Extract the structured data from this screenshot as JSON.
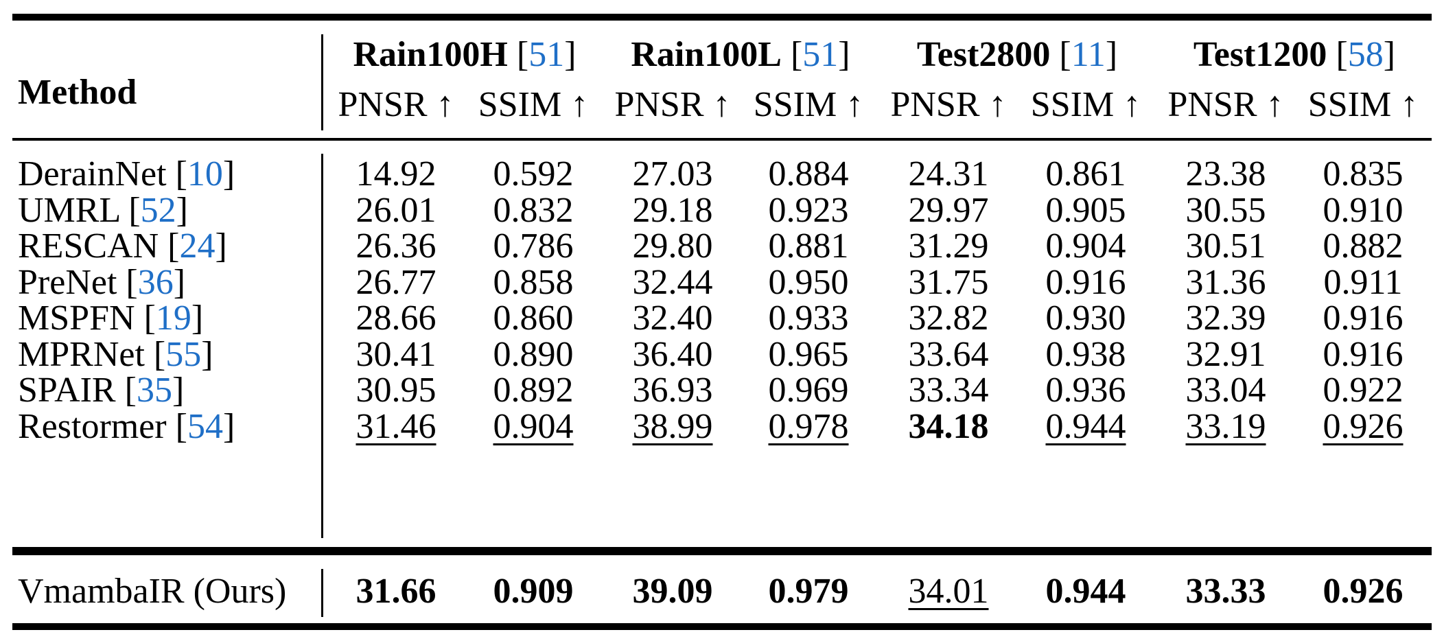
{
  "table": {
    "method_header": "Method",
    "datasets": [
      {
        "name": "Rain100H",
        "ref": "51"
      },
      {
        "name": "Rain100L",
        "ref": "51"
      },
      {
        "name": "Test2800",
        "ref": "11"
      },
      {
        "name": "Test1200",
        "ref": "58"
      }
    ],
    "metrics": [
      "PNSR ↑",
      "SSIM ↑",
      "PNSR ↑",
      "SSIM ↑",
      "PNSR ↑",
      "SSIM ↑",
      "PNSR ↑",
      "SSIM ↑"
    ],
    "rows": [
      {
        "method": "DerainNet",
        "ref": "10",
        "values": [
          "14.92",
          "0.592",
          "27.03",
          "0.884",
          "24.31",
          "0.861",
          "23.38",
          "0.835"
        ],
        "bold": [],
        "underline": []
      },
      {
        "method": "UMRL",
        "ref": "52",
        "values": [
          "26.01",
          "0.832",
          "29.18",
          "0.923",
          "29.97",
          "0.905",
          "30.55",
          "0.910"
        ],
        "bold": [],
        "underline": []
      },
      {
        "method": "RESCAN",
        "ref": "24",
        "values": [
          "26.36",
          "0.786",
          "29.80",
          "0.881",
          "31.29",
          "0.904",
          "30.51",
          "0.882"
        ],
        "bold": [],
        "underline": []
      },
      {
        "method": "PreNet",
        "ref": "36",
        "values": [
          "26.77",
          "0.858",
          "32.44",
          "0.950",
          "31.75",
          "0.916",
          "31.36",
          "0.911"
        ],
        "bold": [],
        "underline": []
      },
      {
        "method": "MSPFN",
        "ref": "19",
        "values": [
          "28.66",
          "0.860",
          "32.40",
          "0.933",
          "32.82",
          "0.930",
          "32.39",
          "0.916"
        ],
        "bold": [],
        "underline": []
      },
      {
        "method": "MPRNet",
        "ref": "55",
        "values": [
          "30.41",
          "0.890",
          "36.40",
          "0.965",
          "33.64",
          "0.938",
          "32.91",
          "0.916"
        ],
        "bold": [],
        "underline": []
      },
      {
        "method": "SPAIR",
        "ref": "35",
        "values": [
          "30.95",
          "0.892",
          "36.93",
          "0.969",
          "33.34",
          "0.936",
          "33.04",
          "0.922"
        ],
        "bold": [],
        "underline": []
      },
      {
        "method": "Restormer",
        "ref": "54",
        "values": [
          "31.46",
          "0.904",
          "38.99",
          "0.978",
          "34.18",
          "0.944",
          "33.19",
          "0.926"
        ],
        "bold": [
          4
        ],
        "underline": [
          0,
          1,
          2,
          3,
          5,
          6,
          7
        ]
      }
    ],
    "ours": {
      "method": "VmambaIR (Ours)",
      "values": [
        "31.66",
        "0.909",
        "39.09",
        "0.979",
        "34.01",
        "0.944",
        "33.33",
        "0.926"
      ],
      "bold": [
        0,
        1,
        2,
        3,
        5,
        6,
        7
      ],
      "underline": [
        4
      ]
    }
  }
}
